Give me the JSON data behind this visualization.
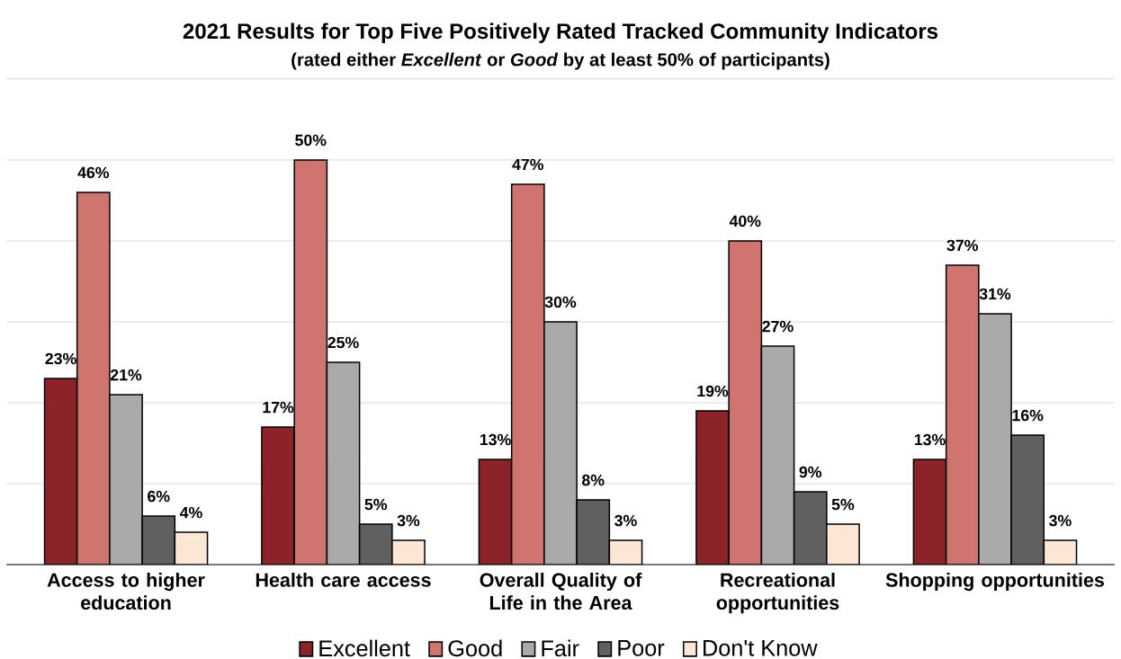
{
  "chart_data": {
    "type": "bar",
    "title": "2021 Results for Top Five Positively Rated Tracked Community Indicators",
    "subtitle": "(rated either *Excellent* or *Good* by at least 50% of participants)",
    "categories": [
      "Access to higher education",
      "Health care access",
      "Overall Quality of Life in the Area",
      "Recreational opportunities",
      "Shopping opportunities"
    ],
    "series": [
      {
        "name": "Excellent",
        "color": "#8b2328",
        "values": [
          23,
          17,
          13,
          19,
          13
        ],
        "value_labels": [
          "23%",
          "17%",
          "13%",
          "19%",
          "13%"
        ]
      },
      {
        "name": "Good",
        "color": "#d07470",
        "values": [
          46,
          50,
          47,
          40,
          37
        ],
        "value_labels": [
          "46%",
          "50%",
          "47%",
          "40%",
          "37%"
        ]
      },
      {
        "name": "Fair",
        "color": "#aaaaaa",
        "values": [
          21,
          25,
          30,
          27,
          31
        ],
        "value_labels": [
          "21%",
          "25%",
          "30%",
          "27%",
          "31%"
        ]
      },
      {
        "name": "Poor",
        "color": "#606060",
        "values": [
          6,
          5,
          8,
          9,
          16
        ],
        "value_labels": [
          "6%",
          "5%",
          "8%",
          "9%",
          "16%"
        ]
      },
      {
        "name": "Don't Know",
        "color": "#fce6d6",
        "values": [
          4,
          3,
          3,
          5,
          3
        ],
        "value_labels": [
          "4%",
          "3%",
          "3%",
          "5%",
          "3%"
        ]
      }
    ],
    "grid": "y",
    "legend": "bottom",
    "tick_labels": "x"
  }
}
